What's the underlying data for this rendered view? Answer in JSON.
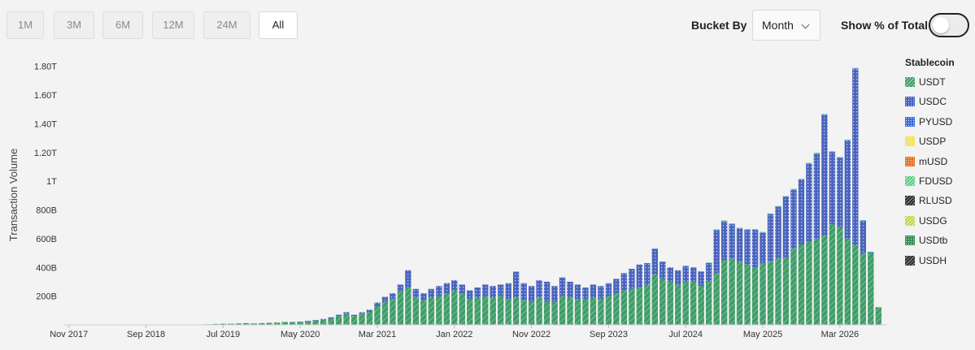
{
  "controls": {
    "ranges": [
      "1M",
      "3M",
      "6M",
      "12M",
      "24M",
      "All"
    ],
    "active_range": "All",
    "bucket_label": "Bucket By",
    "bucket_value": "Month",
    "percent_label": "Show % of Total",
    "percent_on": false
  },
  "colors": {
    "USDT": "#3f9d68",
    "USDC": "#4a64be",
    "PYUSD": "#3f6fd6",
    "USDP": "#f2e35a",
    "mUSD": "#e8742c",
    "FDUSD": "#59cd85",
    "RLUSD": "#2b2b2b",
    "USDG": "#b6d94a",
    "USDtb": "#3c8f5b",
    "USDH": "#2e2e2e"
  },
  "chart_data": {
    "type": "bar",
    "stacked": true,
    "ylabel": "Transaction Volume",
    "xlabel": "",
    "ylim": [
      0,
      1.9
    ],
    "y_unit": "T",
    "y_ticks": [
      {
        "value": 0.2,
        "label": "200B"
      },
      {
        "value": 0.4,
        "label": "400B"
      },
      {
        "value": 0.6,
        "label": "600B"
      },
      {
        "value": 0.8,
        "label": "800B"
      },
      {
        "value": 1.0,
        "label": "1T"
      },
      {
        "value": 1.2,
        "label": "1.20T"
      },
      {
        "value": 1.4,
        "label": "1.40T"
      },
      {
        "value": 1.6,
        "label": "1.60T"
      },
      {
        "value": 1.8,
        "label": "1.80T"
      }
    ],
    "x_start": "Nov 2017",
    "x_ticks": [
      "Nov 2017",
      "Sep 2018",
      "Jul 2019",
      "May 2020",
      "Mar 2021",
      "Jan 2022",
      "Nov 2022",
      "Sep 2023",
      "Jul 2024",
      "May 2025",
      "Mar 2026"
    ],
    "legend_title": "Stablecoin",
    "legend": [
      "USDT",
      "USDC",
      "PYUSD",
      "USDP",
      "mUSD",
      "FDUSD",
      "RLUSD",
      "USDG",
      "USDtb",
      "USDH"
    ],
    "series": [
      {
        "name": "USDT",
        "values": [
          0.002,
          0.002,
          0.002,
          0.002,
          0.002,
          0.002,
          0.002,
          0.002,
          0.002,
          0.002,
          0.002,
          0.002,
          0.002,
          0.002,
          0.002,
          0.002,
          0.002,
          0.002,
          0.004,
          0.006,
          0.008,
          0.008,
          0.01,
          0.012,
          0.01,
          0.012,
          0.014,
          0.016,
          0.02,
          0.02,
          0.02,
          0.025,
          0.03,
          0.035,
          0.045,
          0.06,
          0.075,
          0.06,
          0.075,
          0.09,
          0.13,
          0.16,
          0.18,
          0.23,
          0.26,
          0.19,
          0.17,
          0.19,
          0.2,
          0.22,
          0.24,
          0.22,
          0.18,
          0.19,
          0.2,
          0.19,
          0.2,
          0.18,
          0.19,
          0.17,
          0.16,
          0.19,
          0.16,
          0.16,
          0.2,
          0.19,
          0.18,
          0.18,
          0.19,
          0.18,
          0.2,
          0.22,
          0.24,
          0.25,
          0.26,
          0.28,
          0.35,
          0.32,
          0.3,
          0.28,
          0.3,
          0.3,
          0.27,
          0.3,
          0.36,
          0.45,
          0.46,
          0.44,
          0.42,
          0.4,
          0.43,
          0.44,
          0.46,
          0.47,
          0.53,
          0.56,
          0.58,
          0.6,
          0.62,
          0.7,
          0.68,
          0.6,
          0.55,
          0.5,
          0.5,
          0.12
        ]
      },
      {
        "name": "USDC",
        "values": [
          0,
          0,
          0,
          0,
          0,
          0,
          0,
          0,
          0,
          0,
          0,
          0,
          0,
          0,
          0,
          0,
          0,
          0,
          0,
          0,
          0,
          0,
          0,
          0,
          0,
          0,
          0,
          0,
          0,
          0,
          0.002,
          0.003,
          0.004,
          0.006,
          0.007,
          0.01,
          0.013,
          0.01,
          0.012,
          0.015,
          0.025,
          0.035,
          0.04,
          0.05,
          0.12,
          0.06,
          0.05,
          0.06,
          0.07,
          0.07,
          0.07,
          0.06,
          0.06,
          0.07,
          0.08,
          0.08,
          0.08,
          0.11,
          0.18,
          0.12,
          0.11,
          0.12,
          0.14,
          0.11,
          0.13,
          0.11,
          0.1,
          0.08,
          0.09,
          0.09,
          0.09,
          0.1,
          0.12,
          0.14,
          0.16,
          0.15,
          0.18,
          0.12,
          0.1,
          0.1,
          0.11,
          0.1,
          0.1,
          0.13,
          0.3,
          0.27,
          0.24,
          0.23,
          0.24,
          0.26,
          0.21,
          0.33,
          0.36,
          0.42,
          0.41,
          0.45,
          0.54,
          0.59,
          0.84,
          0.5,
          0.48,
          0.68,
          1.23,
          0.22
        ]
      },
      {
        "name": "PYUSD",
        "values": [
          0,
          0,
          0,
          0,
          0,
          0,
          0,
          0,
          0,
          0,
          0,
          0,
          0,
          0,
          0,
          0,
          0,
          0,
          0,
          0,
          0,
          0,
          0,
          0,
          0,
          0,
          0,
          0,
          0,
          0,
          0,
          0,
          0,
          0,
          0,
          0,
          0,
          0,
          0,
          0,
          0,
          0,
          0,
          0,
          0,
          0,
          0,
          0,
          0,
          0,
          0,
          0,
          0,
          0,
          0,
          0,
          0,
          0,
          0,
          0,
          0,
          0,
          0,
          0,
          0,
          0,
          0,
          0,
          0,
          0,
          0,
          0,
          0,
          0,
          0,
          0,
          0,
          0,
          0,
          0,
          0,
          0,
          0,
          0,
          0,
          0.002,
          0.002,
          0.002,
          0.003,
          0.003,
          0.003,
          0.003,
          0.004,
          0.004,
          0.004,
          0.004,
          0.005,
          0.005,
          0.005,
          0.006,
          0.006,
          0.006,
          0.006,
          0.006,
          0.006,
          0.003
        ]
      },
      {
        "name": "FDUSD",
        "values": [
          0,
          0,
          0,
          0,
          0,
          0,
          0,
          0,
          0,
          0,
          0,
          0,
          0,
          0,
          0,
          0,
          0,
          0,
          0,
          0,
          0,
          0,
          0,
          0,
          0,
          0,
          0,
          0,
          0,
          0,
          0,
          0,
          0,
          0,
          0,
          0,
          0,
          0,
          0,
          0,
          0,
          0,
          0,
          0,
          0,
          0,
          0,
          0,
          0,
          0,
          0,
          0,
          0,
          0,
          0,
          0,
          0,
          0,
          0,
          0,
          0,
          0,
          0,
          0,
          0,
          0,
          0,
          0,
          0,
          0,
          0,
          0,
          0,
          0,
          0,
          0,
          0,
          0,
          0,
          0,
          0,
          0.002,
          0.003,
          0.004,
          0.005,
          0.005,
          0.005,
          0.004,
          0.004,
          0.004,
          0.004,
          0.003,
          0.003,
          0.003,
          0.003,
          0.003,
          0.003,
          0.003,
          0.003,
          0.003,
          0.003,
          0.003,
          0.003,
          0.003,
          0.003,
          0.001
        ]
      }
    ]
  }
}
